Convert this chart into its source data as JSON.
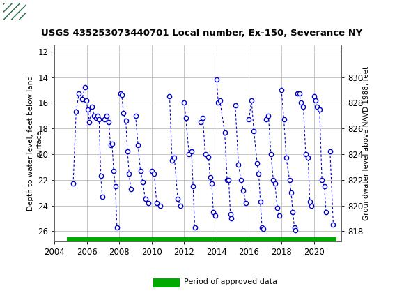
{
  "title": "USGS 435253073440701 Local number, Ex-150, Severance NY",
  "ylabel_left": "Depth to water level, feet below land\nsurface",
  "ylabel_right": "Groundwater level above NAVD 1988, feet",
  "ylim_left": [
    26.8,
    11.5
  ],
  "xlim": [
    2004.0,
    2021.7
  ],
  "xticks": [
    2004,
    2006,
    2008,
    2010,
    2012,
    2014,
    2016,
    2018,
    2020
  ],
  "yticks_left": [
    12,
    14,
    16,
    18,
    20,
    22,
    24,
    26
  ],
  "yticks_right": [
    818,
    820,
    822,
    824,
    826,
    828,
    830
  ],
  "header_color": "#1b6b3a",
  "line_color": "#0000cc",
  "marker_color": "#0000cc",
  "grid_color": "#bbbbbb",
  "approved_bar_color": "#00aa00",
  "background_color": "#ffffff",
  "plot_bg_color": "#ffffff",
  "legend_label": "Period of approved data",
  "land_surface_elevation": 844.0,
  "approved_bar_xmin": 2004.75,
  "approved_bar_xmax": 2021.4,
  "segments_groups": [
    [
      [
        2005.15,
        22.3
      ],
      [
        2005.33,
        16.7
      ],
      [
        2005.5,
        15.3
      ],
      [
        2005.7,
        15.7
      ],
      [
        2005.87,
        14.8
      ]
    ],
    [
      [
        2005.95,
        15.8
      ],
      [
        2006.05,
        16.5
      ],
      [
        2006.15,
        17.5
      ],
      [
        2006.3,
        16.3
      ],
      [
        2006.45,
        17.0
      ],
      [
        2006.55,
        17.2
      ],
      [
        2006.65,
        17.0
      ],
      [
        2006.75,
        17.3
      ],
      [
        2006.85,
        21.7
      ],
      [
        2006.95,
        23.3
      ]
    ],
    [
      [
        2007.1,
        17.3
      ],
      [
        2007.2,
        17.0
      ],
      [
        2007.35,
        17.5
      ],
      [
        2007.45,
        19.3
      ],
      [
        2007.55,
        19.2
      ],
      [
        2007.65,
        21.3
      ],
      [
        2007.75,
        22.5
      ],
      [
        2007.85,
        25.7
      ]
    ],
    [
      [
        2008.05,
        15.3
      ],
      [
        2008.15,
        15.4
      ],
      [
        2008.25,
        16.8
      ],
      [
        2008.4,
        17.4
      ],
      [
        2008.5,
        19.8
      ],
      [
        2008.6,
        21.5
      ],
      [
        2008.7,
        22.7
      ]
    ],
    [
      [
        2009.0,
        17.0
      ],
      [
        2009.15,
        19.3
      ],
      [
        2009.3,
        21.3
      ],
      [
        2009.45,
        22.2
      ],
      [
        2009.6,
        23.5
      ],
      [
        2009.8,
        23.8
      ]
    ],
    [
      [
        2010.0,
        21.3
      ],
      [
        2010.15,
        21.5
      ],
      [
        2010.3,
        23.8
      ],
      [
        2010.5,
        24.0
      ]
    ],
    [
      [
        2011.1,
        15.5
      ],
      [
        2011.25,
        20.5
      ],
      [
        2011.4,
        20.3
      ],
      [
        2011.6,
        23.5
      ],
      [
        2011.75,
        24.0
      ]
    ],
    [
      [
        2012.0,
        16.0
      ],
      [
        2012.1,
        17.2
      ],
      [
        2012.3,
        20.0
      ],
      [
        2012.45,
        19.8
      ],
      [
        2012.55,
        22.5
      ],
      [
        2012.65,
        25.7
      ]
    ],
    [
      [
        2013.0,
        17.5
      ],
      [
        2013.15,
        17.2
      ],
      [
        2013.3,
        20.0
      ],
      [
        2013.5,
        20.2
      ],
      [
        2013.6,
        21.8
      ],
      [
        2013.7,
        22.3
      ],
      [
        2013.8,
        24.5
      ],
      [
        2013.9,
        24.8
      ]
    ],
    [
      [
        2014.0,
        14.2
      ],
      [
        2014.1,
        16.0
      ],
      [
        2014.2,
        15.8
      ],
      [
        2014.5,
        18.3
      ],
      [
        2014.65,
        22.0
      ],
      [
        2014.75,
        22.0
      ],
      [
        2014.85,
        24.7
      ],
      [
        2014.92,
        25.0
      ]
    ],
    [
      [
        2015.15,
        16.2
      ],
      [
        2015.35,
        20.8
      ],
      [
        2015.5,
        22.0
      ],
      [
        2015.65,
        22.8
      ],
      [
        2015.8,
        23.8
      ]
    ],
    [
      [
        2016.0,
        17.3
      ],
      [
        2016.15,
        15.8
      ],
      [
        2016.3,
        18.2
      ],
      [
        2016.5,
        20.7
      ],
      [
        2016.6,
        21.5
      ],
      [
        2016.7,
        23.7
      ],
      [
        2016.8,
        25.7
      ],
      [
        2016.9,
        25.8
      ]
    ],
    [
      [
        2017.05,
        17.3
      ],
      [
        2017.2,
        17.0
      ],
      [
        2017.35,
        20.0
      ],
      [
        2017.5,
        22.0
      ],
      [
        2017.6,
        22.3
      ],
      [
        2017.75,
        24.2
      ],
      [
        2017.85,
        24.8
      ]
    ],
    [
      [
        2018.0,
        15.0
      ],
      [
        2018.15,
        17.3
      ],
      [
        2018.3,
        20.3
      ],
      [
        2018.5,
        22.0
      ],
      [
        2018.6,
        23.0
      ],
      [
        2018.7,
        24.5
      ],
      [
        2018.8,
        25.7
      ],
      [
        2018.88,
        25.9
      ]
    ],
    [
      [
        2019.0,
        15.3
      ],
      [
        2019.1,
        15.3
      ],
      [
        2019.2,
        16.0
      ],
      [
        2019.35,
        16.3
      ],
      [
        2019.5,
        20.0
      ],
      [
        2019.65,
        20.3
      ],
      [
        2019.75,
        23.7
      ],
      [
        2019.85,
        24.0
      ]
    ],
    [
      [
        2020.0,
        15.5
      ],
      [
        2020.1,
        15.8
      ],
      [
        2020.2,
        16.3
      ],
      [
        2020.35,
        16.5
      ],
      [
        2020.5,
        22.0
      ],
      [
        2020.65,
        22.5
      ],
      [
        2020.75,
        24.5
      ]
    ],
    [
      [
        2021.0,
        19.8
      ],
      [
        2021.2,
        25.5
      ]
    ]
  ]
}
